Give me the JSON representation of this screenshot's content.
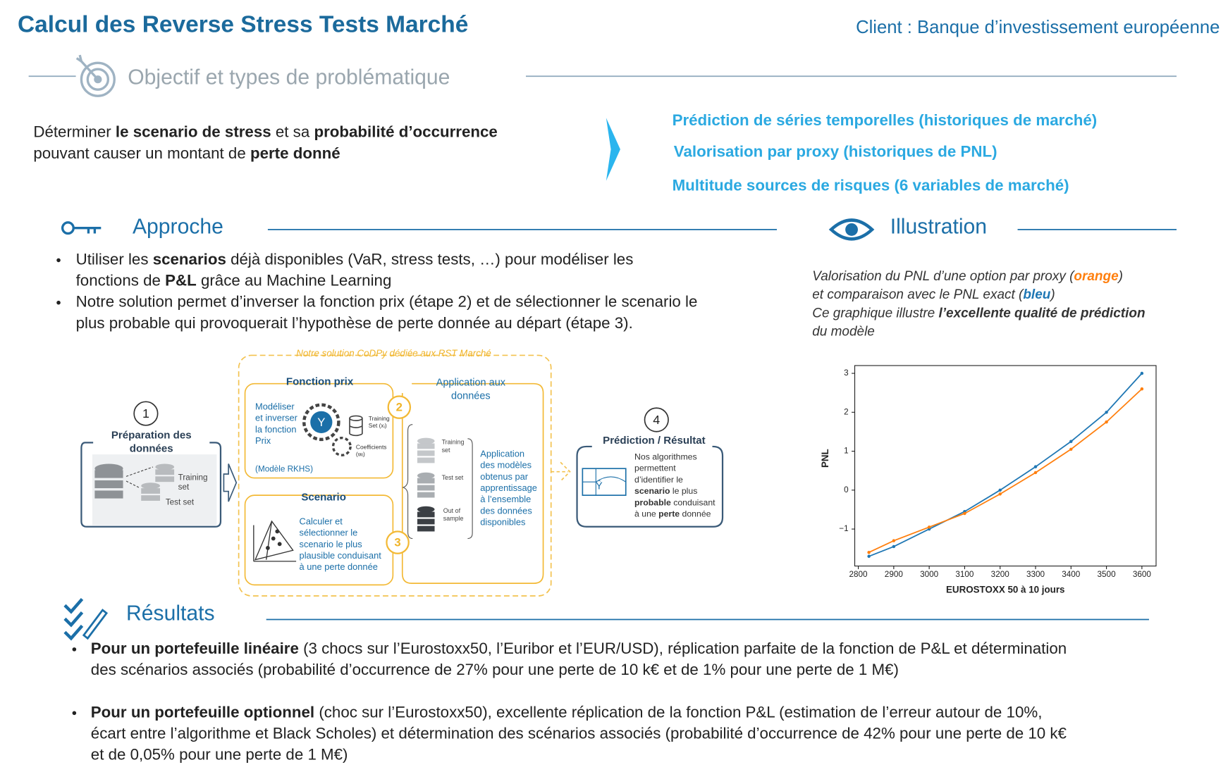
{
  "header": {
    "title": "Calcul des Reverse Stress Tests Marché",
    "client": "Client : Banque d’investissement européenne"
  },
  "objective": {
    "title": "Objectif et types de problématique",
    "text": [
      [
        "Déterminer ",
        {
          "text": "le scenario de stress",
          "bold": true
        },
        " et sa ",
        {
          "text": "probabilité d’occurrence",
          "bold": true
        }
      ],
      [
        "pouvant causer un montant de ",
        {
          "text": "perte donné",
          "bold": true
        }
      ]
    ],
    "types": [
      "Prédiction de séries temporelles (historiques de marché)",
      "Valorisation par proxy (historiques de PNL)",
      "Multitude sources de risques (6 variables de marché)"
    ]
  },
  "approach": {
    "title": "Approche",
    "bullets": [
      [
        [
          "Utiliser les ",
          {
            "text": "scenarios",
            "bold": true
          },
          " déjà disponibles (VaR, stress tests, …) pour modéliser les"
        ],
        [
          "fonctions de ",
          {
            "text": "P&L",
            "bold": true
          },
          " grâce au Machine Learning"
        ]
      ],
      [
        [
          "Notre solution permet d’inverser la fonction prix (étape 2) et de sélectionner le scenario le"
        ],
        [
          "plus probable qui provoquerait l’hypothèse de perte donnée au départ (étape 3)."
        ]
      ]
    ]
  },
  "diagram": {
    "banner": "Notre solution CoDPy dédiée aux RST Marché",
    "step1": {
      "number": 1,
      "title": [
        "Préparation des",
        "données"
      ],
      "training": [
        "Training",
        "set"
      ],
      "test": "Test set"
    },
    "step2": {
      "number": 2,
      "title": "Fonction prix",
      "text": [
        "Modéliser",
        "et inverser",
        "la fonction",
        "Prix"
      ],
      "model": "(Modèle RKHS)",
      "icon": "Y",
      "training": [
        "Training",
        "Set (xᵢ)"
      ],
      "coefficients": [
        "Coefficients",
        "(wᵢ)"
      ]
    },
    "application": {
      "title": [
        "Application aux",
        "données"
      ],
      "training": [
        "Training",
        "set"
      ],
      "test": "Test set",
      "out": [
        "Out of",
        "sample"
      ],
      "text": [
        "Application",
        "des modèles",
        "obtenus par",
        "apprentissage",
        "à l’ensemble",
        "des données",
        "disponibles"
      ]
    },
    "step3": {
      "number": 3,
      "title": "Scenario",
      "text": [
        "Calculer et",
        "sélectionner le",
        "scenario le plus",
        "plausible conduisant",
        "à une perte donnée"
      ]
    },
    "step4": {
      "number": 4,
      "title": "Prédiction / Résultat",
      "icon": "Ŷ",
      "text": [
        [
          "Nos algorithmes"
        ],
        [
          "permettent"
        ],
        [
          "d’identifier le"
        ],
        [
          {
            "text": "scenario",
            "bold": true
          },
          " le plus"
        ],
        [
          {
            "text": "probable",
            "bold": true
          },
          " conduisant"
        ],
        [
          "à une ",
          {
            "text": "perte",
            "bold": true
          },
          " donnée"
        ]
      ]
    }
  },
  "illustration": {
    "title": "Illustration",
    "caption": [
      [
        "Valorisation du PNL d’une option par proxy (",
        {
          "text": "orange",
          "bold": true
        },
        ")"
      ],
      [
        "et comparaison avec le PNL exact (",
        {
          "text": "bleu",
          "bold": true
        },
        ")"
      ],
      [
        "Ce graphique illustre ",
        {
          "text": "l’excellente qualité de prédiction",
          "bold": true
        }
      ],
      [
        "du modèle"
      ]
    ]
  },
  "chart_data": {
    "type": "line",
    "x_label": "EUROSTOXX 50 à 10 jours",
    "y_label": "PNL",
    "x": [
      2830,
      2900,
      3000,
      3100,
      3200,
      3300,
      3400,
      3500,
      3600
    ],
    "series": [
      {
        "color": "#1f77b4",
        "values": [
          -1.7,
          -1.45,
          -1.0,
          -0.55,
          0.0,
          0.6,
          1.25,
          2.0,
          3.0
        ]
      },
      {
        "color": "#ff7f0e",
        "values": [
          -1.6,
          -1.3,
          -0.95,
          -0.6,
          -0.1,
          0.45,
          1.05,
          1.75,
          2.6
        ]
      }
    ],
    "xlim": [
      2790,
      3640
    ],
    "ylim": [
      -1.95,
      3.2
    ],
    "xticks": [
      2800,
      2900,
      3000,
      3100,
      3200,
      3300,
      3400,
      3500,
      3600
    ],
    "yticks": [
      {
        "value": -1,
        "label": "−1"
      },
      0,
      1,
      2,
      3
    ],
    "markers": true
  },
  "results": {
    "title": "Résultats",
    "bullets": [
      [
        [
          {
            "text": "Pour un portefeuille linéaire",
            "bold": true
          },
          " (3 chocs sur l’Eurostoxx50, l’Euribor et l’EUR/USD), réplication parfaite de la fonction de P&L et détermination"
        ],
        [
          "des scénarios associés (probabilité d’occurrence de 27% pour une perte de 10 k€ et de 1% pour une perte de 1 M€)"
        ]
      ],
      [
        [
          {
            "text": "Pour un portefeuille optionnel",
            "bold": true
          },
          " (choc sur l’Eurostoxx50), excellente réplication de la fonction P&L (estimation de l’erreur autour de 10%,"
        ],
        [
          "écart entre l’algorithme et Black Scholes) et détermination des scénarios associés (probabilité d’occurrence de 42% pour une perte de 10 k€"
        ],
        [
          "et de 0,05% pour une perte de 1 M€)"
        ]
      ]
    ]
  }
}
